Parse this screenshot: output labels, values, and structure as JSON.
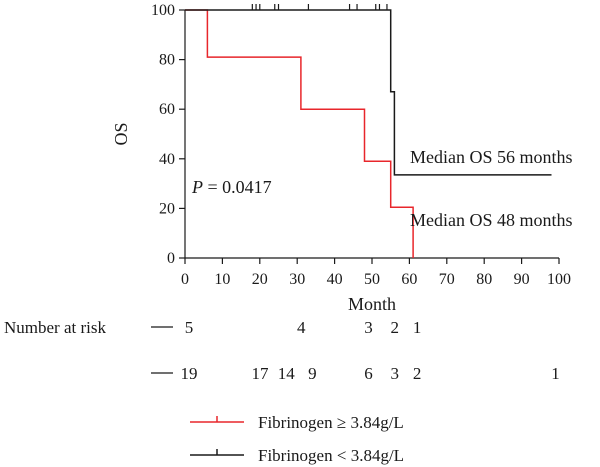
{
  "chart_data": {
    "type": "line",
    "subtype": "kaplan-meier",
    "xlabel": "Month",
    "ylabel": "OS",
    "xlim": [
      0,
      100
    ],
    "ylim": [
      0,
      100
    ],
    "xticks": [
      0,
      10,
      20,
      30,
      40,
      50,
      60,
      70,
      80,
      90,
      100
    ],
    "yticks": [
      0,
      20,
      40,
      60,
      80,
      100
    ],
    "grid": false,
    "legend_position": "bottom",
    "series": [
      {
        "name": "Fibrinogen ≥ 3.84g/L",
        "color": "#e8262b",
        "steps": [
          [
            0,
            100
          ],
          [
            6,
            100
          ],
          [
            6,
            81
          ],
          [
            31,
            81
          ],
          [
            31,
            60
          ],
          [
            48,
            60
          ],
          [
            48,
            39
          ],
          [
            55,
            39
          ],
          [
            55,
            20.5
          ],
          [
            61,
            20.5
          ],
          [
            61,
            0
          ]
        ],
        "censor_times": []
      },
      {
        "name": "Fibrinogen < 3.84g/L",
        "color": "#1a1a1a",
        "steps": [
          [
            0,
            100
          ],
          [
            55,
            100
          ],
          [
            55,
            67
          ],
          [
            56,
            67
          ],
          [
            56,
            33.5
          ],
          [
            98,
            33.5
          ]
        ],
        "censor_times": [
          18,
          19,
          20,
          24,
          25,
          33,
          44,
          46,
          51,
          52,
          54
        ]
      }
    ],
    "annotations": {
      "p_label": "P",
      "p_value": " = 0.0417",
      "median_high": "Median OS 56 months",
      "median_low": "Median OS 48 months"
    },
    "risk_table": {
      "title": "Number at risk",
      "rows": [
        {
          "series": 0,
          "entries": [
            {
              "x": 0,
              "n": "5"
            },
            {
              "x": 30,
              "n": "4"
            },
            {
              "x": 48,
              "n": "3"
            },
            {
              "x": 55,
              "n": "2"
            },
            {
              "x": 61,
              "n": "1"
            }
          ]
        },
        {
          "series": 1,
          "entries": [
            {
              "x": 0,
              "n": "19"
            },
            {
              "x": 19,
              "n": "17"
            },
            {
              "x": 26,
              "n": "14"
            },
            {
              "x": 33,
              "n": "9"
            },
            {
              "x": 48,
              "n": "6"
            },
            {
              "x": 55,
              "n": "3"
            },
            {
              "x": 61,
              "n": "2"
            },
            {
              "x": 98,
              "n": "1"
            }
          ]
        }
      ]
    }
  }
}
